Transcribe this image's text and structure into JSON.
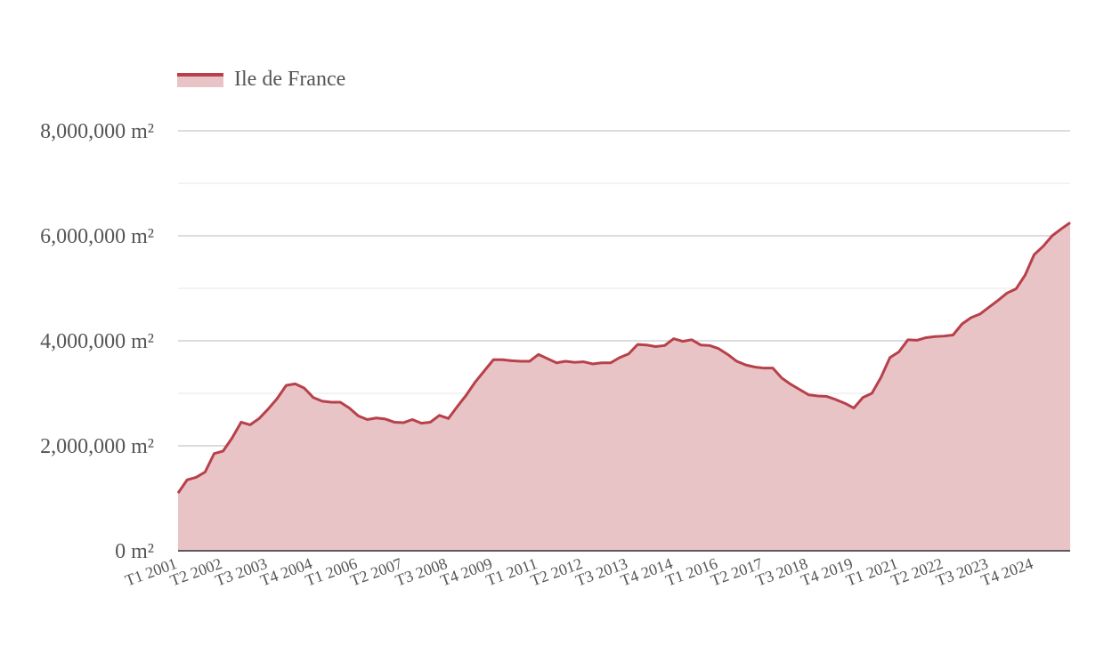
{
  "chart_data": {
    "type": "area",
    "legend": {
      "position": "top-left",
      "entries": [
        "Ile de France"
      ]
    },
    "colors": {
      "line": "#b8404a",
      "fill": "#e8c4c6",
      "grid_major": "#c8c8c8",
      "grid_minor": "#ececec"
    },
    "ylim": [
      0,
      8000000
    ],
    "y_ticks": [
      {
        "value": 0,
        "label": "0 m²"
      },
      {
        "value": 2000000,
        "label": "2,000,000 m²"
      },
      {
        "value": 4000000,
        "label": "4,000,000 m²"
      },
      {
        "value": 6000000,
        "label": "6,000,000 m²"
      },
      {
        "value": 8000000,
        "label": "8,000,000 m²"
      }
    ],
    "x_tick_labels": [
      "T1 2001",
      "T2 2002",
      "T3 2003",
      "T4 2004",
      "T1 2006",
      "T2 2007",
      "T3 2008",
      "T4 2009",
      "T1 2011",
      "T2 2012",
      "T3 2013",
      "T4 2014",
      "T1 2016",
      "T2 2017",
      "T3 2018",
      "T4 2019",
      "T1 2021",
      "T2 2022",
      "T3 2023",
      "T4 2024"
    ],
    "x_tick_every": 5,
    "series": [
      {
        "name": "Ile de France",
        "start_period": "T1 2001",
        "values": [
          1100000,
          1350000,
          1400000,
          1500000,
          1850000,
          1900000,
          2150000,
          2450000,
          2400000,
          2520000,
          2700000,
          2900000,
          3150000,
          3180000,
          3100000,
          2920000,
          2850000,
          2830000,
          2830000,
          2720000,
          2570000,
          2500000,
          2530000,
          2510000,
          2450000,
          2440000,
          2500000,
          2430000,
          2450000,
          2580000,
          2520000,
          2750000,
          2970000,
          3220000,
          3430000,
          3640000,
          3640000,
          3620000,
          3610000,
          3610000,
          3740000,
          3660000,
          3580000,
          3610000,
          3590000,
          3600000,
          3560000,
          3580000,
          3580000,
          3680000,
          3750000,
          3930000,
          3920000,
          3890000,
          3910000,
          4040000,
          3990000,
          4020000,
          3920000,
          3910000,
          3850000,
          3740000,
          3610000,
          3540000,
          3500000,
          3480000,
          3480000,
          3290000,
          3170000,
          3070000,
          2970000,
          2950000,
          2940000,
          2880000,
          2810000,
          2720000,
          2920000,
          3000000,
          3300000,
          3680000,
          3790000,
          4020000,
          4010000,
          4060000,
          4080000,
          4090000,
          4110000,
          4320000,
          4440000,
          4510000,
          4640000,
          4770000,
          4910000,
          4990000,
          5250000,
          5640000,
          5800000,
          6000000,
          6130000,
          6250000
        ]
      }
    ]
  }
}
